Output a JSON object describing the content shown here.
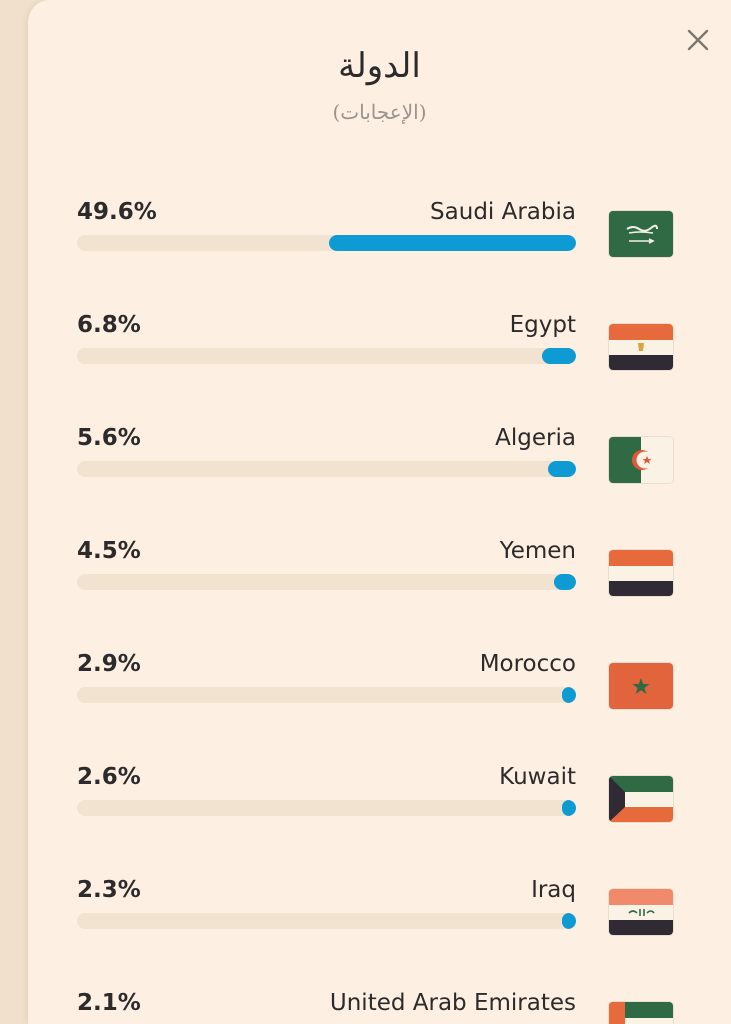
{
  "header": {
    "title": "الدولة",
    "subtitle": "(الإعجابات)",
    "close_icon": "close-icon"
  },
  "rows": [
    {
      "percent_label": "49.6%",
      "value": 49.6,
      "country": "Saudi Arabia",
      "flag_icon": "saudi-arabia-flag-icon"
    },
    {
      "percent_label": "6.8%",
      "value": 6.8,
      "country": "Egypt",
      "flag_icon": "egypt-flag-icon"
    },
    {
      "percent_label": "5.6%",
      "value": 5.6,
      "country": "Algeria",
      "flag_icon": "algeria-flag-icon"
    },
    {
      "percent_label": "4.5%",
      "value": 4.5,
      "country": "Yemen",
      "flag_icon": "yemen-flag-icon"
    },
    {
      "percent_label": "2.9%",
      "value": 2.9,
      "country": "Morocco",
      "flag_icon": "morocco-flag-icon"
    },
    {
      "percent_label": "2.6%",
      "value": 2.6,
      "country": "Kuwait",
      "flag_icon": "kuwait-flag-icon"
    },
    {
      "percent_label": "2.3%",
      "value": 2.3,
      "country": "Iraq",
      "flag_icon": "iraq-flag-icon"
    },
    {
      "percent_label": "2.1%",
      "value": 2.1,
      "country": "United Arab Emirates",
      "flag_icon": "uae-flag-icon"
    }
  ],
  "colors": {
    "bar_fill": "#0e9bd3",
    "bar_track": "#f2e3d1",
    "panel_bg": "#fdf0e2",
    "text": "#2d2a2c"
  }
}
